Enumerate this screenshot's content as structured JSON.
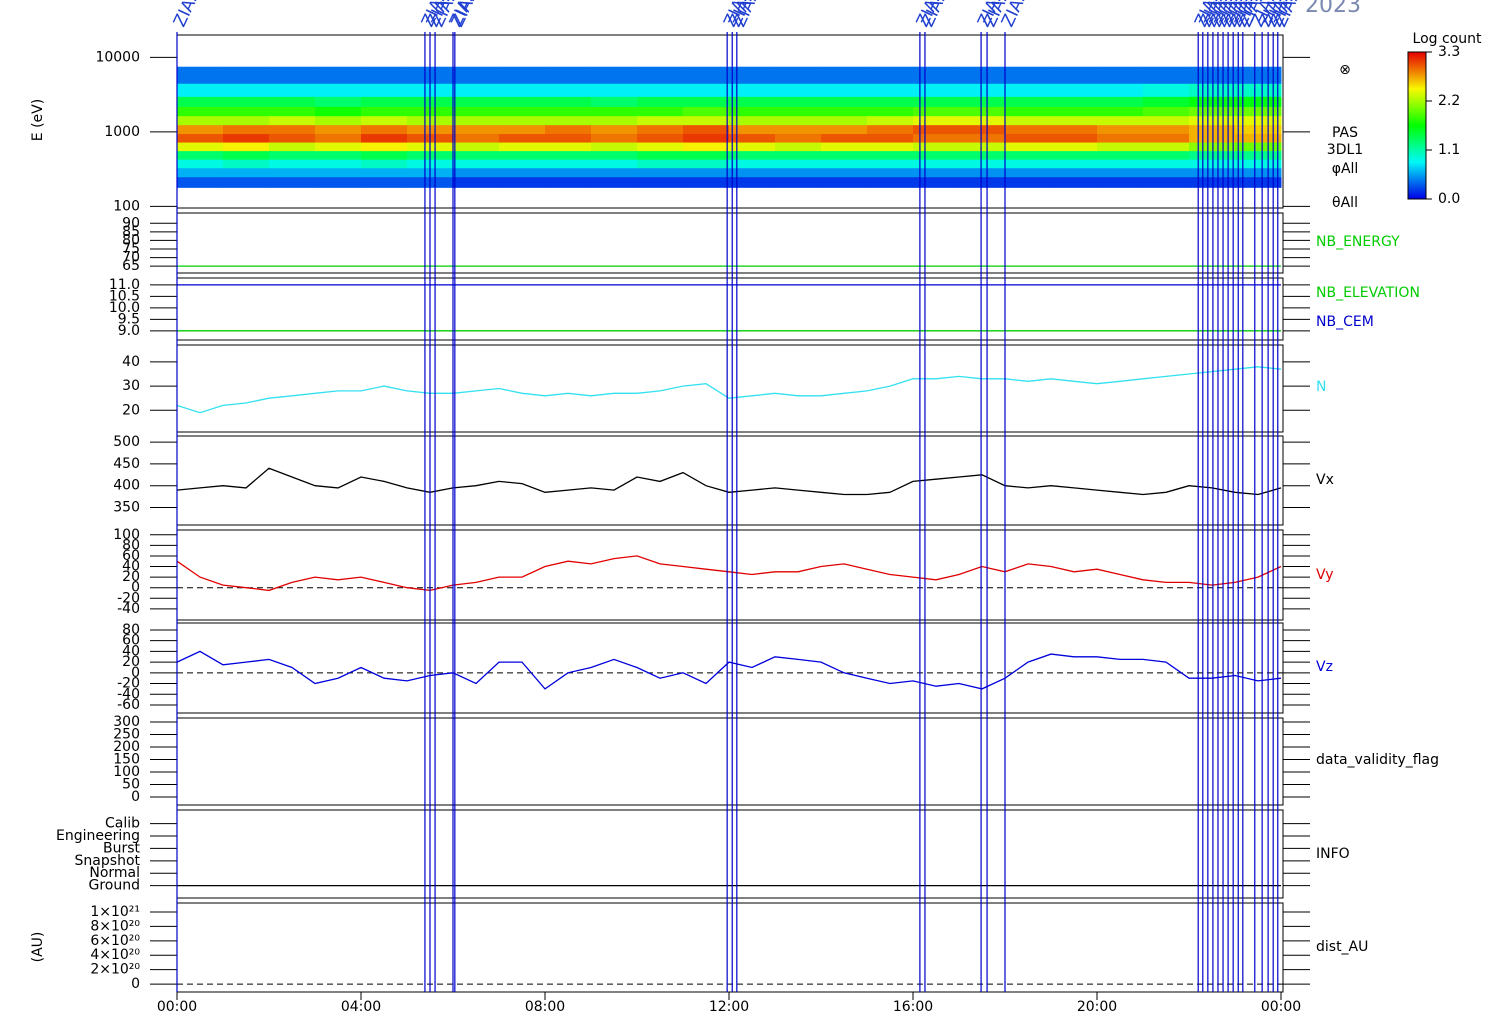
{
  "chart_data": [
    {
      "type": "heatmap",
      "title": "2023",
      "ylabel": "E (eV)",
      "log": true,
      "ylim": [
        95,
        20000
      ],
      "yticks": [
        100,
        1000,
        10000
      ],
      "annotations": [
        "⊗",
        "PAS",
        "3DL1",
        "φAll",
        "θAll"
      ],
      "x_bins": [
        0,
        1,
        2,
        3,
        4,
        5,
        6,
        7,
        8,
        9,
        10,
        11,
        12,
        13,
        14,
        15,
        16,
        17,
        18,
        19,
        20,
        21,
        22,
        23,
        24
      ],
      "y_bins": [
        180,
        250,
        330,
        430,
        560,
        730,
        950,
        1250,
        1650,
        2200,
        3000,
        4500,
        7500
      ],
      "values": [
        [
          0.3,
          0.6,
          0.9,
          1.3,
          2.4,
          3.0,
          2.8,
          2.2,
          1.8,
          1.4,
          0.8,
          0.4
        ],
        [
          0.3,
          0.6,
          1.0,
          1.4,
          2.5,
          3.1,
          2.9,
          2.2,
          1.8,
          1.4,
          0.8,
          0.4
        ],
        [
          0.3,
          0.6,
          0.9,
          1.3,
          2.3,
          3.0,
          2.9,
          2.3,
          1.8,
          1.4,
          0.8,
          0.4
        ],
        [
          0.3,
          0.6,
          0.9,
          1.3,
          2.4,
          2.9,
          2.8,
          2.2,
          1.7,
          1.3,
          0.8,
          0.4
        ],
        [
          0.3,
          0.6,
          1.0,
          1.4,
          2.5,
          3.1,
          2.9,
          2.3,
          1.8,
          1.4,
          0.8,
          0.4
        ],
        [
          0.3,
          0.6,
          0.9,
          1.3,
          2.4,
          3.0,
          2.8,
          2.2,
          1.8,
          1.4,
          0.8,
          0.4
        ],
        [
          0.2,
          0.5,
          0.9,
          1.3,
          2.3,
          2.9,
          2.8,
          2.2,
          1.8,
          1.4,
          0.8,
          0.4
        ],
        [
          0.2,
          0.5,
          0.9,
          1.3,
          2.4,
          3.0,
          2.8,
          2.2,
          1.8,
          1.4,
          0.8,
          0.4
        ],
        [
          0.2,
          0.5,
          0.9,
          1.3,
          2.4,
          3.0,
          2.9,
          2.2,
          1.8,
          1.4,
          0.8,
          0.4
        ],
        [
          0.2,
          0.5,
          0.9,
          1.3,
          2.3,
          2.9,
          2.8,
          2.2,
          1.8,
          1.3,
          0.8,
          0.4
        ],
        [
          0.2,
          0.5,
          1.0,
          1.4,
          2.4,
          3.0,
          2.9,
          2.3,
          1.8,
          1.4,
          0.8,
          0.4
        ],
        [
          0.2,
          0.5,
          1.0,
          1.4,
          2.5,
          3.1,
          3.0,
          2.3,
          1.9,
          1.4,
          0.8,
          0.4
        ],
        [
          0.2,
          0.5,
          0.9,
          1.3,
          2.4,
          3.0,
          2.8,
          2.2,
          1.8,
          1.4,
          0.8,
          0.4
        ],
        [
          0.2,
          0.5,
          0.9,
          1.3,
          2.3,
          2.9,
          2.8,
          2.2,
          1.8,
          1.4,
          0.8,
          0.4
        ],
        [
          0.2,
          0.5,
          0.9,
          1.3,
          2.4,
          3.0,
          2.8,
          2.2,
          1.8,
          1.4,
          0.8,
          0.4
        ],
        [
          0.2,
          0.5,
          0.9,
          1.3,
          2.4,
          3.0,
          2.9,
          2.3,
          1.8,
          1.4,
          0.8,
          0.4
        ],
        [
          0.2,
          0.5,
          0.9,
          1.3,
          2.3,
          2.9,
          3.0,
          2.4,
          1.9,
          1.4,
          0.8,
          0.4
        ],
        [
          0.2,
          0.5,
          0.9,
          1.3,
          2.3,
          2.9,
          3.0,
          2.4,
          1.9,
          1.4,
          0.8,
          0.4
        ],
        [
          0.2,
          0.5,
          0.9,
          1.3,
          2.4,
          3.0,
          2.9,
          2.3,
          1.8,
          1.4,
          0.8,
          0.4
        ],
        [
          0.2,
          0.5,
          0.9,
          1.3,
          2.4,
          3.0,
          2.9,
          2.3,
          1.8,
          1.4,
          0.8,
          0.4
        ],
        [
          0.2,
          0.5,
          0.9,
          1.3,
          2.3,
          2.9,
          2.8,
          2.3,
          1.8,
          1.4,
          0.8,
          0.4
        ],
        [
          0.2,
          0.5,
          0.9,
          1.3,
          2.3,
          2.9,
          2.8,
          2.3,
          1.9,
          1.5,
          0.9,
          0.4
        ],
        [
          0.2,
          0.5,
          0.9,
          1.2,
          2.1,
          2.7,
          2.7,
          2.4,
          2.0,
          1.6,
          1.0,
          0.4
        ],
        [
          0.2,
          0.5,
          0.9,
          1.2,
          2.0,
          2.7,
          2.6,
          2.4,
          2.0,
          1.6,
          1.0,
          0.4
        ]
      ],
      "colorbar": {
        "label": "Log count",
        "lim": [
          0,
          3.3
        ],
        "ticks": [
          {
            "value": 0,
            "label": "0.0"
          },
          1.1,
          2.2,
          3.3
        ]
      },
      "events": [
        {
          "x": 0.0,
          "label": "ZIAS"
        },
        {
          "x": 5.39,
          "label": "ZIAS"
        },
        {
          "x": 5.5,
          "label": "ZIAS"
        },
        {
          "x": 5.61,
          "label": "ZIAS"
        },
        {
          "x": 6.0,
          "label": "ZIAS"
        },
        {
          "x": 6.04,
          "label": "ZIAS"
        },
        {
          "x": 11.96,
          "label": "ZIAS"
        },
        {
          "x": 12.07,
          "label": "ZIAS"
        },
        {
          "x": 12.17,
          "label": "ZIAS"
        },
        {
          "x": 16.15,
          "label": "ZIAS"
        },
        {
          "x": 16.26,
          "label": "ZIAS"
        },
        {
          "x": 17.48,
          "label": "ZIAS"
        },
        {
          "x": 17.61,
          "label": "ZIAS"
        },
        {
          "x": 18.0,
          "label": "ZIAS"
        },
        {
          "x": 22.2,
          "label": "ZIAS"
        },
        {
          "x": 22.3,
          "label": "ZIAS"
        },
        {
          "x": 22.41,
          "label": "ZIAS"
        },
        {
          "x": 22.52,
          "label": "ZIAS"
        },
        {
          "x": 22.63,
          "label": "ZIAS"
        },
        {
          "x": 22.74,
          "label": "ZIAS"
        },
        {
          "x": 22.85,
          "label": "ZIAS"
        },
        {
          "x": 22.96,
          "label": "ZIAS"
        },
        {
          "x": 23.07,
          "label": "ZIAS"
        },
        {
          "x": 23.17,
          "label": "ZIAS"
        },
        {
          "x": 23.43,
          "label": "ZIAS"
        },
        {
          "x": 23.59,
          "label": "ZIAS"
        },
        {
          "x": 23.72,
          "label": "ZIAS"
        },
        {
          "x": 23.83,
          "label": "ZIAS"
        },
        {
          "x": 23.93,
          "label": "ZIAS"
        }
      ]
    },
    {
      "type": "line",
      "ylim": [
        61,
        96
      ],
      "yticks": [
        65,
        70,
        75,
        80,
        85,
        90
      ],
      "x": [
        0,
        24
      ],
      "series": [
        {
          "name": "NB_ENERGY",
          "color": "#00cc00",
          "values": [
            65,
            65
          ]
        }
      ]
    },
    {
      "type": "line",
      "ylim": [
        8.6,
        11.3
      ],
      "yticks": [
        {
          "value": 9,
          "label": "9.0"
        },
        9.5,
        {
          "value": 10,
          "label": "10.0"
        },
        10.5,
        {
          "value": 11,
          "label": "11.0"
        }
      ],
      "x": [
        0,
        24
      ],
      "series": [
        {
          "name": "NB_ELEVATION",
          "color": "#00cc00",
          "values": [
            9,
            9
          ]
        },
        {
          "name": "NB_CEM",
          "color": "#0000cc",
          "values": [
            11,
            11
          ]
        }
      ]
    },
    {
      "type": "line",
      "ylim": [
        11,
        47
      ],
      "yticks": [
        20,
        30,
        40
      ],
      "x": [
        0,
        0.5,
        1,
        1.5,
        2,
        2.5,
        3,
        3.5,
        4,
        4.5,
        5,
        5.5,
        6,
        6.5,
        7,
        7.5,
        8,
        8.5,
        9,
        9.5,
        10,
        10.5,
        11,
        11.5,
        12,
        12.5,
        13,
        13.5,
        14,
        14.5,
        15,
        15.5,
        16,
        16.5,
        17,
        17.5,
        18,
        18.5,
        19,
        19.5,
        20,
        20.5,
        21,
        21.5,
        22,
        22.5,
        23,
        23.5,
        24
      ],
      "series": [
        {
          "name": "N",
          "color": "#33e0f0",
          "values": [
            22,
            19,
            22,
            23,
            25,
            26,
            27,
            28,
            28,
            30,
            28,
            27,
            27,
            28,
            29,
            27,
            26,
            27,
            26,
            27,
            27,
            28,
            30,
            31,
            25,
            26,
            27,
            26,
            26,
            27,
            28,
            30,
            33,
            33,
            34,
            33,
            33,
            32,
            33,
            32,
            31,
            32,
            33,
            34,
            35,
            36,
            37,
            38,
            37
          ]
        }
      ]
    },
    {
      "type": "line",
      "ylim": [
        310,
        514
      ],
      "yticks": [
        350,
        400,
        450,
        500
      ],
      "x": [
        0,
        0.5,
        1,
        1.5,
        2,
        2.5,
        3,
        3.5,
        4,
        4.5,
        5,
        5.5,
        6,
        6.5,
        7,
        7.5,
        8,
        8.5,
        9,
        9.5,
        10,
        10.5,
        11,
        11.5,
        12,
        12.5,
        13,
        13.5,
        14,
        14.5,
        15,
        15.5,
        16,
        16.5,
        17,
        17.5,
        18,
        18.5,
        19,
        19.5,
        20,
        20.5,
        21,
        21.5,
        22,
        22.5,
        23,
        23.5,
        24
      ],
      "series": [
        {
          "name": "Vx",
          "color": "#000000",
          "values": [
            390,
            395,
            400,
            395,
            440,
            420,
            400,
            395,
            420,
            410,
            395,
            385,
            395,
            400,
            410,
            405,
            385,
            390,
            395,
            390,
            420,
            410,
            430,
            400,
            385,
            390,
            395,
            390,
            385,
            380,
            380,
            385,
            410,
            415,
            420,
            425,
            400,
            395,
            400,
            395,
            390,
            385,
            380,
            385,
            400,
            395,
            385,
            380,
            395
          ]
        }
      ]
    },
    {
      "type": "line",
      "ylim": [
        -61,
        109
      ],
      "yticks": [
        -40,
        -20,
        0,
        20,
        40,
        60,
        80,
        100
      ],
      "hline": 0,
      "x": [
        0,
        0.5,
        1,
        1.5,
        2,
        2.5,
        3,
        3.5,
        4,
        4.5,
        5,
        5.5,
        6,
        6.5,
        7,
        7.5,
        8,
        8.5,
        9,
        9.5,
        10,
        10.5,
        11,
        11.5,
        12,
        12.5,
        13,
        13.5,
        14,
        14.5,
        15,
        15.5,
        16,
        16.5,
        17,
        17.5,
        18,
        18.5,
        19,
        19.5,
        20,
        20.5,
        21,
        21.5,
        22,
        22.5,
        23,
        23.5,
        24
      ],
      "series": [
        {
          "name": "Vy",
          "color": "#e00000",
          "values": [
            50,
            20,
            5,
            0,
            -5,
            10,
            20,
            15,
            20,
            10,
            0,
            -5,
            5,
            10,
            20,
            20,
            40,
            50,
            45,
            55,
            60,
            45,
            40,
            35,
            30,
            25,
            30,
            30,
            40,
            45,
            35,
            25,
            20,
            15,
            25,
            40,
            30,
            45,
            40,
            30,
            35,
            25,
            15,
            10,
            10,
            5,
            10,
            20,
            40
          ]
        }
      ]
    },
    {
      "type": "line",
      "ylim": [
        -75,
        93
      ],
      "yticks": [
        -60,
        -40,
        -20,
        0,
        20,
        40,
        60,
        80
      ],
      "hline": 0,
      "x": [
        0,
        0.5,
        1,
        1.5,
        2,
        2.5,
        3,
        3.5,
        4,
        4.5,
        5,
        5.5,
        6,
        6.5,
        7,
        7.5,
        8,
        8.5,
        9,
        9.5,
        10,
        10.5,
        11,
        11.5,
        12,
        12.5,
        13,
        13.5,
        14,
        14.5,
        15,
        15.5,
        16,
        16.5,
        17,
        17.5,
        18,
        18.5,
        19,
        19.5,
        20,
        20.5,
        21,
        21.5,
        22,
        22.5,
        23,
        23.5,
        24
      ],
      "series": [
        {
          "name": "Vz",
          "color": "#0000dd",
          "values": [
            20,
            40,
            15,
            20,
            25,
            10,
            -20,
            -10,
            10,
            -10,
            -15,
            -5,
            0,
            -20,
            20,
            20,
            -30,
            0,
            10,
            25,
            10,
            -10,
            0,
            -20,
            20,
            10,
            30,
            25,
            20,
            0,
            -10,
            -20,
            -15,
            -25,
            -20,
            -30,
            -10,
            20,
            35,
            30,
            30,
            25,
            25,
            20,
            -10,
            -10,
            -5,
            -15,
            -10
          ]
        }
      ]
    },
    {
      "type": "line",
      "label": "data_validity_flag",
      "ylim": [
        -32,
        316
      ],
      "yticks": [
        0,
        50,
        100,
        150,
        200,
        250,
        300
      ],
      "series": []
    },
    {
      "type": "line",
      "ylim": [
        -1,
        6.1
      ],
      "yticks": [
        {
          "value": 0,
          "label": "Ground"
        },
        {
          "value": 1,
          "label": "Normal"
        },
        {
          "value": 2,
          "label": "Snapshot"
        },
        {
          "value": 3,
          "label": "Burst"
        },
        {
          "value": 4,
          "label": "Engineering"
        },
        {
          "value": 5,
          "label": "Calib"
        }
      ],
      "x": [
        0,
        24
      ],
      "series": [
        {
          "name": "INFO",
          "color": "#000000",
          "values": [
            0,
            0
          ]
        }
      ]
    },
    {
      "type": "line",
      "label": "dist_AU",
      "ylabel": "(AU)",
      "ylim": [
        -1.1e+20,
        1.125e+21
      ],
      "hline": 0,
      "yticks": [
        0,
        {
          "value": 2e+20,
          "label": "2×10²⁰"
        },
        {
          "value": 4e+20,
          "label": "4×10²⁰"
        },
        {
          "value": 6e+20,
          "label": "6×10²⁰"
        },
        {
          "value": 8e+20,
          "label": "8×10²⁰"
        },
        {
          "value": 1e+21,
          "label": "1×10²¹"
        }
      ],
      "series": [],
      "xlim": [
        0,
        24
      ],
      "xticks": [
        {
          "value": 0,
          "label": "00:00"
        },
        {
          "value": 4,
          "label": "04:00"
        },
        {
          "value": 8,
          "label": "08:00"
        },
        {
          "value": 12,
          "label": "12:00"
        },
        {
          "value": 16,
          "label": "16:00"
        },
        {
          "value": 20,
          "label": "20:00"
        },
        {
          "value": 24,
          "label": "00:00"
        }
      ]
    }
  ]
}
